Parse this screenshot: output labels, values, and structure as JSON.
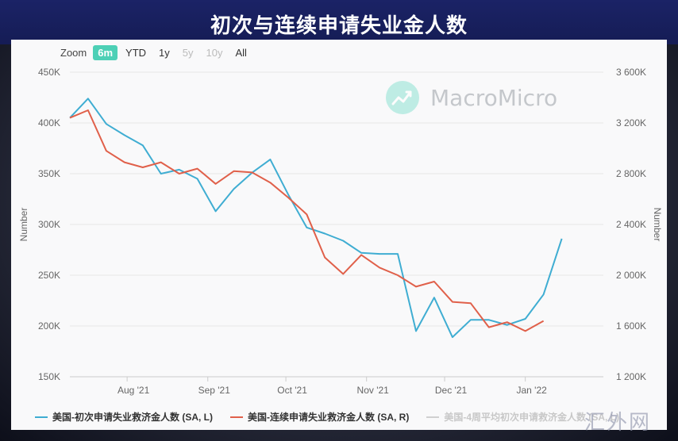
{
  "title": "初次与连续申请失业金人数",
  "zoom": {
    "label": "Zoom",
    "buttons": [
      {
        "label": "6m",
        "state": "active"
      },
      {
        "label": "YTD",
        "state": "normal"
      },
      {
        "label": "1y",
        "state": "normal"
      },
      {
        "label": "5y",
        "state": "disabled"
      },
      {
        "label": "10y",
        "state": "disabled"
      },
      {
        "label": "All",
        "state": "normal"
      }
    ]
  },
  "watermark": "MacroMicro",
  "corner_mark": "汇外网",
  "colors": {
    "initial": "#3fadd2",
    "continuing": "#e0604a",
    "avg": "#d0d0d0",
    "accent": "#4dd0b6"
  },
  "chart_data": {
    "type": "line",
    "x_tick_labels": [
      "Aug '21",
      "Sep '21",
      "Oct '21",
      "Nov '21",
      "Dec '21",
      "Jan '22"
    ],
    "x_range": [
      "2021-07-10",
      "2022-01-31"
    ],
    "y_left": {
      "label": "Number",
      "min": 150000,
      "max": 450000,
      "ticks": [
        "150K",
        "200K",
        "250K",
        "300K",
        "350K",
        "400K",
        "450K"
      ]
    },
    "y_right": {
      "label": "Number",
      "min": 1200000,
      "max": 3600000,
      "ticks": [
        "1 200K",
        "1 600K",
        "2 000K",
        "2 400K",
        "2 800K",
        "3 200K",
        "3 600K"
      ]
    },
    "grid": true,
    "legend_position": "bottom",
    "series": [
      {
        "name": "美国-初次申请失业救济金人数 (SA, L)",
        "axis": "left",
        "x": [
          "2021-07-10",
          "2021-07-17",
          "2021-07-24",
          "2021-07-31",
          "2021-08-07",
          "2021-08-14",
          "2021-08-21",
          "2021-08-28",
          "2021-09-04",
          "2021-09-11",
          "2021-09-18",
          "2021-09-25",
          "2021-10-02",
          "2021-10-09",
          "2021-10-16",
          "2021-10-23",
          "2021-10-30",
          "2021-11-06",
          "2021-11-13",
          "2021-11-20",
          "2021-11-27",
          "2021-12-04",
          "2021-12-11",
          "2021-12-18",
          "2021-12-25",
          "2022-01-01",
          "2022-01-08",
          "2022-01-15"
        ],
        "values": [
          405000,
          424000,
          399000,
          388000,
          378000,
          350000,
          354000,
          345000,
          313000,
          335000,
          351000,
          364000,
          329000,
          297000,
          291000,
          284000,
          272000,
          271000,
          271000,
          195000,
          228000,
          189000,
          206000,
          206000,
          201000,
          207000,
          231000,
          286000
        ]
      },
      {
        "name": "美国-连续申请失业救济金人数 (SA, R)",
        "axis": "right",
        "x": [
          "2021-07-10",
          "2021-07-17",
          "2021-07-24",
          "2021-07-31",
          "2021-08-07",
          "2021-08-14",
          "2021-08-21",
          "2021-08-28",
          "2021-09-04",
          "2021-09-11",
          "2021-09-18",
          "2021-09-25",
          "2021-10-02",
          "2021-10-09",
          "2021-10-16",
          "2021-10-23",
          "2021-10-30",
          "2021-11-06",
          "2021-11-13",
          "2021-11-20",
          "2021-11-27",
          "2021-12-04",
          "2021-12-11",
          "2021-12-18",
          "2021-12-25",
          "2022-01-01",
          "2022-01-08"
        ],
        "values": [
          3240000,
          3300000,
          2980000,
          2890000,
          2850000,
          2890000,
          2800000,
          2840000,
          2720000,
          2820000,
          2810000,
          2730000,
          2610000,
          2480000,
          2140000,
          2010000,
          2160000,
          2060000,
          2000000,
          1910000,
          1950000,
          1790000,
          1780000,
          1590000,
          1630000,
          1560000,
          1640000
        ]
      },
      {
        "name": "美国-4周平均初次申请救济金人数 (SA, L)",
        "axis": "left",
        "x": [],
        "values": []
      }
    ]
  }
}
